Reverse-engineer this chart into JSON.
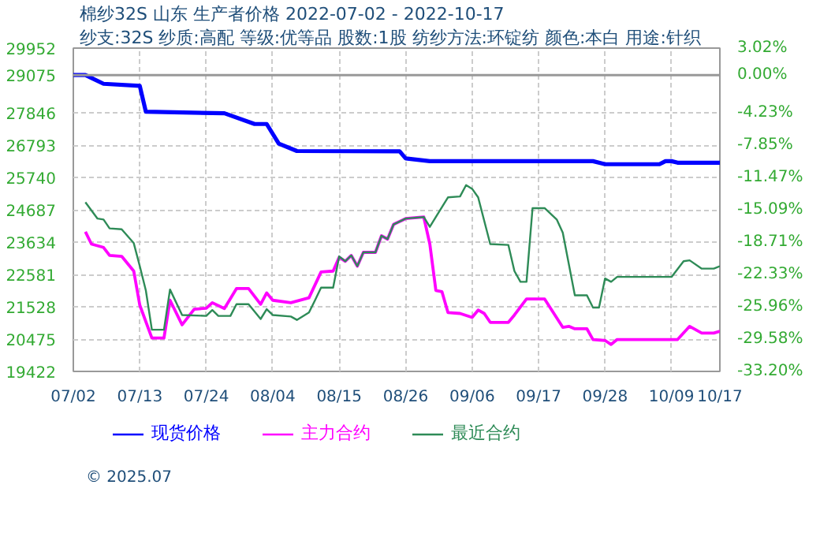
{
  "chart_data": {
    "type": "line",
    "title": "棉纱32S 山东 生产者价格 2022-07-02 - 2022-10-17",
    "subtitle": "纱支:32S 纱质:高配 等级:优等品 股数:1股 纺纱方法:环锭纺 颜色:本白 用途:针织",
    "annotations": [
      "© 2025.07"
    ],
    "xlim": [
      "2022-07-02",
      "2022-10-17"
    ],
    "xticks": [
      {
        "value": "2022-07-02",
        "label": "07/02"
      },
      {
        "value": "2022-07-13",
        "label": "07/13"
      },
      {
        "value": "2022-07-24",
        "label": "07/24"
      },
      {
        "value": "2022-08-04",
        "label": "08/04"
      },
      {
        "value": "2022-08-15",
        "label": "08/15"
      },
      {
        "value": "2022-08-26",
        "label": "08/26"
      },
      {
        "value": "2022-09-06",
        "label": "09/06"
      },
      {
        "value": "2022-09-17",
        "label": "09/17"
      },
      {
        "value": "2022-09-28",
        "label": "09/28"
      },
      {
        "value": "2022-10-09",
        "label": "10/09"
      },
      {
        "value": "2022-10-17",
        "label": "10/17"
      }
    ],
    "ylim": [
      19422,
      29952
    ],
    "yticks": [
      19422,
      20475,
      21528,
      22581,
      23634,
      24687,
      25740,
      26793,
      27846,
      29075,
      29952
    ],
    "y2lim": [
      -33.2,
      3.02
    ],
    "y2ticks": [
      {
        "value": -33.2,
        "label": "-33.20%"
      },
      {
        "value": -29.58,
        "label": "-29.58%"
      },
      {
        "value": -25.96,
        "label": "-25.96%"
      },
      {
        "value": -22.33,
        "label": "-22.33%"
      },
      {
        "value": -18.71,
        "label": "-18.71%"
      },
      {
        "value": -15.09,
        "label": "-15.09%"
      },
      {
        "value": -11.47,
        "label": "-11.47%"
      },
      {
        "value": -7.85,
        "label": "-7.85%"
      },
      {
        "value": -4.23,
        "label": "-4.23%"
      },
      {
        "value": 0,
        "label": "0.00%"
      },
      {
        "value": 3.02,
        "label": "3.02%"
      }
    ],
    "grid": true,
    "legend": "bottom",
    "ref_lines": [
      {
        "axis": "y",
        "value": 29075,
        "color": "#999999"
      }
    ],
    "series": [
      {
        "name": "现货价格",
        "color": "#0000ff",
        "x": [
          "2022-07-02",
          "2022-07-04",
          "2022-07-05",
          "2022-07-07",
          "2022-07-13",
          "2022-07-14",
          "2022-07-27",
          "2022-08-01",
          "2022-08-03",
          "2022-08-05",
          "2022-08-08",
          "2022-08-25",
          "2022-08-26",
          "2022-08-30",
          "2022-09-26",
          "2022-09-28",
          "2022-10-07",
          "2022-10-08",
          "2022-10-09",
          "2022-10-10",
          "2022-10-17"
        ],
        "values": [
          29075,
          29075,
          28980,
          28790,
          28720,
          27880,
          27830,
          27480,
          27480,
          26840,
          26600,
          26590,
          26360,
          26270,
          26270,
          26170,
          26170,
          26270,
          26270,
          26220,
          26220
        ]
      },
      {
        "name": "主力合约",
        "color": "#ff00ff",
        "x": [
          "2022-07-04",
          "2022-07-05",
          "2022-07-07",
          "2022-07-08",
          "2022-07-10",
          "2022-07-12",
          "2022-07-13",
          "2022-07-15",
          "2022-07-17",
          "2022-07-18",
          "2022-07-20",
          "2022-07-22",
          "2022-07-24",
          "2022-07-25",
          "2022-07-27",
          "2022-07-29",
          "2022-07-31",
          "2022-08-02",
          "2022-08-03",
          "2022-08-04",
          "2022-08-07",
          "2022-08-10",
          "2022-08-12",
          "2022-08-14",
          "2022-08-15",
          "2022-08-16",
          "2022-08-17",
          "2022-08-18",
          "2022-08-19",
          "2022-08-21",
          "2022-08-22",
          "2022-08-23",
          "2022-08-24",
          "2022-08-26",
          "2022-08-29",
          "2022-08-30",
          "2022-08-31",
          "2022-09-01",
          "2022-09-02",
          "2022-09-04",
          "2022-09-06",
          "2022-09-07",
          "2022-09-08",
          "2022-09-09",
          "2022-09-12",
          "2022-09-13",
          "2022-09-15",
          "2022-09-18",
          "2022-09-21",
          "2022-09-22",
          "2022-09-23",
          "2022-09-25",
          "2022-09-26",
          "2022-09-28",
          "2022-09-29",
          "2022-09-30",
          "2022-10-10",
          "2022-10-12",
          "2022-10-14",
          "2022-10-16",
          "2022-10-17"
        ],
        "values": [
          23970,
          23570,
          23460,
          23200,
          23170,
          22690,
          21580,
          20510,
          20510,
          21740,
          20940,
          21450,
          21480,
          21660,
          21470,
          22120,
          22120,
          21610,
          21980,
          21740,
          21660,
          21820,
          22660,
          22690,
          23140,
          23010,
          23200,
          22850,
          23300,
          23300,
          23840,
          23730,
          24210,
          24400,
          24450,
          23570,
          22060,
          22020,
          21340,
          21310,
          21180,
          21420,
          21310,
          21020,
          21020,
          21260,
          21780,
          21780,
          20860,
          20890,
          20810,
          20810,
          20460,
          20430,
          20300,
          20460,
          20460,
          20890,
          20670,
          20670,
          20730
        ]
      },
      {
        "name": "最近合约",
        "color": "#2e8b57",
        "x": [
          "2022-07-04",
          "2022-07-06",
          "2022-07-07",
          "2022-07-08",
          "2022-07-10",
          "2022-07-12",
          "2022-07-13",
          "2022-07-14",
          "2022-07-15",
          "2022-07-17",
          "2022-07-18",
          "2022-07-20",
          "2022-07-24",
          "2022-07-25",
          "2022-07-26",
          "2022-07-28",
          "2022-07-29",
          "2022-07-31",
          "2022-08-02",
          "2022-08-03",
          "2022-08-04",
          "2022-08-07",
          "2022-08-08",
          "2022-08-10",
          "2022-08-11",
          "2022-08-12",
          "2022-08-14",
          "2022-08-15",
          "2022-08-16",
          "2022-08-17",
          "2022-08-18",
          "2022-08-19",
          "2022-08-21",
          "2022-08-22",
          "2022-08-23",
          "2022-08-24",
          "2022-08-26",
          "2022-08-29",
          "2022-08-30",
          "2022-08-31",
          "2022-09-02",
          "2022-09-04",
          "2022-09-05",
          "2022-09-06",
          "2022-09-07",
          "2022-09-09",
          "2022-09-12",
          "2022-09-13",
          "2022-09-14",
          "2022-09-15",
          "2022-09-16",
          "2022-09-18",
          "2022-09-20",
          "2022-09-21",
          "2022-09-23",
          "2022-09-25",
          "2022-09-26",
          "2022-09-27",
          "2022-09-28",
          "2022-09-29",
          "2022-09-30",
          "2022-10-09",
          "2022-10-11",
          "2022-10-12",
          "2022-10-14",
          "2022-10-16",
          "2022-10-17"
        ],
        "values": [
          24930,
          24400,
          24370,
          24080,
          24050,
          23600,
          22850,
          22060,
          20780,
          20780,
          22090,
          21260,
          21230,
          21420,
          21230,
          21230,
          21610,
          21610,
          21130,
          21450,
          21260,
          21210,
          21100,
          21340,
          21740,
          22150,
          22150,
          23170,
          23010,
          23200,
          22850,
          23300,
          23300,
          23840,
          23730,
          24210,
          24400,
          24450,
          24130,
          24450,
          25090,
          25120,
          25490,
          25370,
          25090,
          23570,
          23540,
          22690,
          22340,
          22340,
          24740,
          24740,
          24370,
          23940,
          21900,
          21900,
          21500,
          21500,
          22450,
          22340,
          22500,
          22500,
          23010,
          23040,
          22770,
          22770,
          22850
        ]
      }
    ]
  }
}
